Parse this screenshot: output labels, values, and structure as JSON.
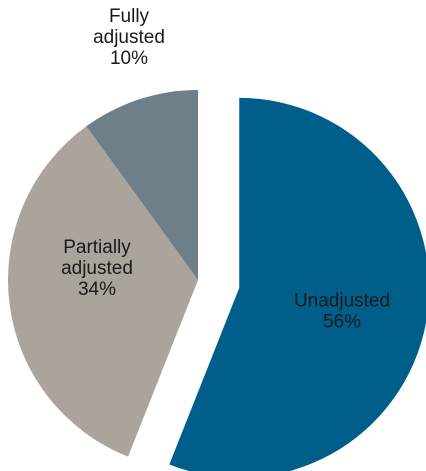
{
  "chart_data": {
    "type": "pie",
    "slices": [
      {
        "label_lines": [
          "Unadjusted",
          "56%"
        ],
        "value": 56,
        "color": "#005f8a",
        "label_color": "#1a1a1a",
        "exploded": true
      },
      {
        "label_lines": [
          "Partially",
          "adjusted",
          "34%"
        ],
        "value": 34,
        "color": "#aaa49d",
        "label_color": "#1a1a1a",
        "exploded": false
      },
      {
        "label_lines": [
          "Fully",
          "adjusted",
          "10%"
        ],
        "value": 10,
        "color": "#6f7f89",
        "label_color": "#1a1a1a",
        "exploded": false
      }
    ],
    "start_angle": "12 o'clock",
    "direction": "clockwise",
    "legend": "none"
  }
}
